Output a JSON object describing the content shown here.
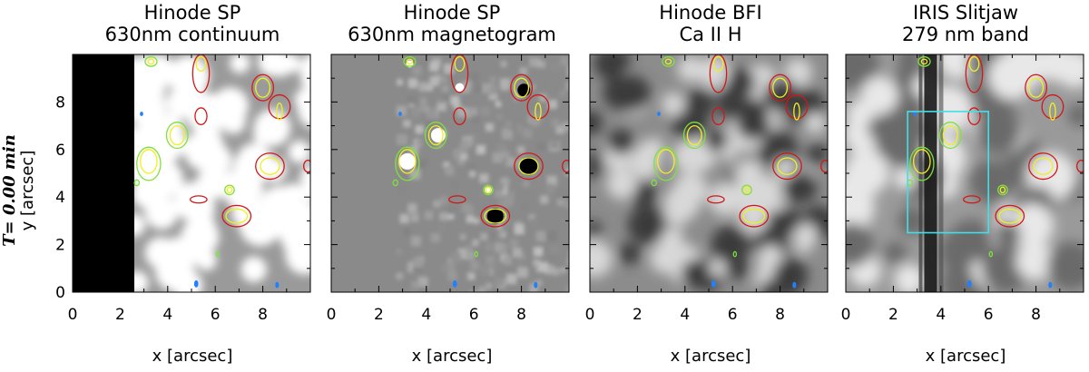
{
  "panels": [
    {
      "title_line1": "Hinode SP",
      "title_line2": "630nm continuum",
      "style": "continuum"
    },
    {
      "title_line1": "Hinode SP",
      "title_line2": "630nm magnetogram",
      "style": "magnetogram"
    },
    {
      "title_line1": "Hinode BFI",
      "title_line2": "Ca II H",
      "style": "caii"
    },
    {
      "title_line1": "IRIS Slitjaw",
      "title_line2": "279 nm band",
      "style": "iris"
    }
  ],
  "y_axis": {
    "time_label": "T= 0.00 min",
    "y_label": "y [arcsec]",
    "ticks": [
      "0",
      "2",
      "4",
      "6",
      "8"
    ]
  },
  "x_axis": {
    "label": "x [arcsec]",
    "ticks": [
      "0",
      "2",
      "4",
      "6",
      "8"
    ]
  },
  "axis_range": {
    "x": [
      0,
      10
    ],
    "y": [
      0,
      10
    ]
  },
  "contour_colors": {
    "red": "#d01818",
    "green": "#80e040",
    "yellow": "#f0f020",
    "blue": "#2080ff"
  },
  "box_color": "#40e0e8"
}
